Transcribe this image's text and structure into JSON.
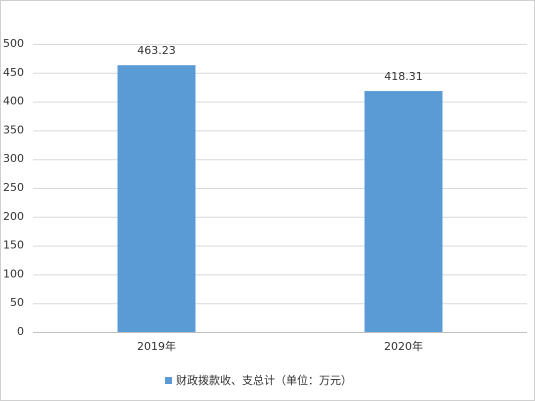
{
  "chart_data": {
    "type": "bar",
    "categories": [
      "2019年",
      "2020年"
    ],
    "series": [
      {
        "name": "财政拨款收、支总计（单位：万元）",
        "color": "#5b9bd5",
        "values": [
          463.23,
          418.31
        ]
      }
    ],
    "ylim": [
      0,
      500
    ],
    "yticks": [
      0,
      50,
      100,
      150,
      200,
      250,
      300,
      350,
      400,
      450,
      500
    ],
    "grid": true,
    "legend": "bottom"
  }
}
